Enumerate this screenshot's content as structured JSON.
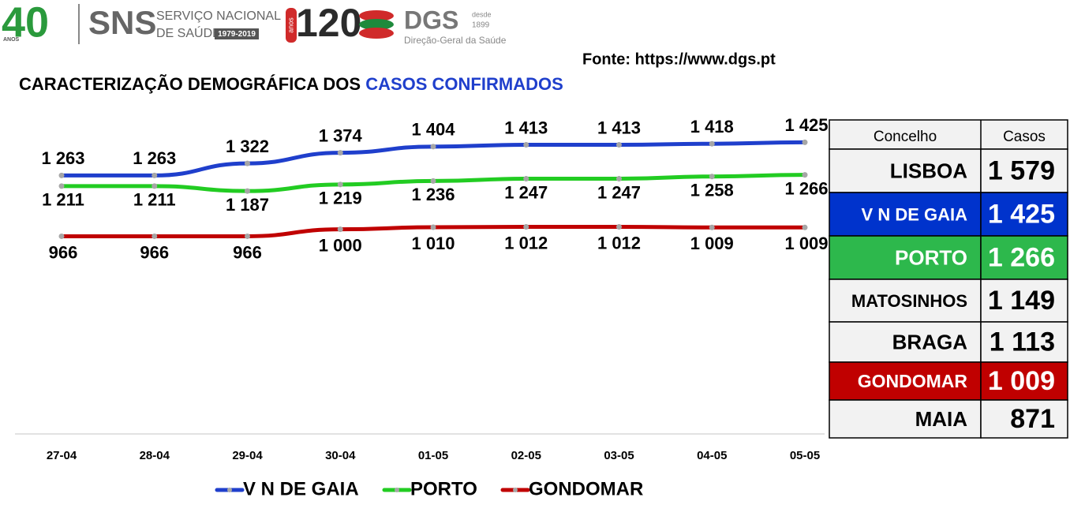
{
  "header": {
    "logo_40": "40",
    "logo_40_sub": "ANOS",
    "sns": "SNS",
    "sns_line1": "SERVIÇO NACIONAL",
    "sns_line2": "DE SAÚDE",
    "sns_years": "1979-2019",
    "dgs_120": "120",
    "dgs_anos": "anos",
    "dgs": "DGS",
    "dgs_since": "desde",
    "dgs_year": "1899",
    "dgs_name": "Direção-Geral da Saúde"
  },
  "source": "Fonte: https://www.dgs.pt",
  "title_part1": "CARACTERIZAÇÃO DEMOGRÁFICA DOS ",
  "title_part2": "CASOS CONFIRMADOS",
  "chart_data": {
    "type": "line",
    "categories": [
      "27-04",
      "28-04",
      "29-04",
      "30-04",
      "01-05",
      "02-05",
      "03-05",
      "04-05",
      "05-05"
    ],
    "ylim": [
      0,
      1600
    ],
    "series": [
      {
        "name": "V N DE GAIA",
        "color": "#1f3fcc",
        "values": [
          1263,
          1263,
          1322,
          1374,
          1404,
          1413,
          1413,
          1418,
          1425
        ],
        "value_labels": [
          "1 263",
          "1 263",
          "1 322",
          "1 374",
          "1 404",
          "1 413",
          "1 413",
          "1 418",
          "1 425"
        ]
      },
      {
        "name": "PORTO",
        "color": "#22cc22",
        "values": [
          1211,
          1211,
          1187,
          1219,
          1236,
          1247,
          1247,
          1258,
          1266
        ],
        "value_labels": [
          "1 211",
          "1 211",
          "1 187",
          "1 219",
          "1 236",
          "1 247",
          "1 247",
          "1 258",
          "1 266"
        ]
      },
      {
        "name": "GONDOMAR",
        "color": "#c00000",
        "values": [
          966,
          966,
          966,
          1000,
          1010,
          1012,
          1012,
          1009,
          1009
        ],
        "value_labels": [
          "966",
          "966",
          "966",
          "1 000",
          "1 010",
          "1 012",
          "1 012",
          "1 009",
          "1 009"
        ]
      }
    ]
  },
  "table": {
    "header": [
      "Concelho",
      "Casos"
    ],
    "rows": [
      {
        "name": "LISBOA",
        "cases": "1 579",
        "color": "#f2f2f2",
        "text_color": "#000000"
      },
      {
        "name": "V N DE GAIA",
        "cases": "1 425",
        "color": "#0033cc",
        "text_color": "#ffffff"
      },
      {
        "name": "PORTO",
        "cases": "1 266",
        "color": "#2db84c",
        "text_color": "#ffffff"
      },
      {
        "name": "MATOSINHOS",
        "cases": "1 149",
        "color": "#f2f2f2",
        "text_color": "#000000"
      },
      {
        "name": "BRAGA",
        "cases": "1 113",
        "color": "#f2f2f2",
        "text_color": "#000000"
      },
      {
        "name": "GONDOMAR",
        "cases": "1 009",
        "color": "#c00000",
        "text_color": "#ffffff"
      },
      {
        "name": "MAIA",
        "cases": "871",
        "color": "#f2f2f2",
        "text_color": "#000000"
      }
    ]
  }
}
